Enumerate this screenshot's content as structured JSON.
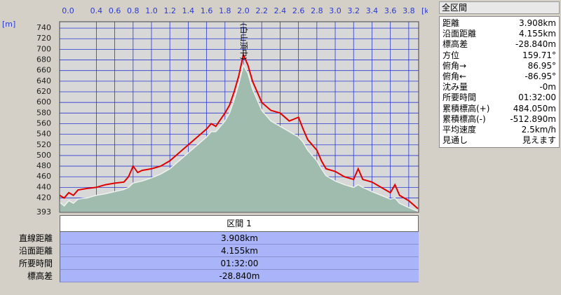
{
  "chart_data": {
    "type": "line",
    "y_unit": "[m]",
    "x_unit": "[km]",
    "xlim": [
      0,
      3.908
    ],
    "ylim": [
      393,
      752
    ],
    "xticks": [
      {
        "value": 0,
        "label": "0.0"
      },
      0.4,
      0.6,
      0.8,
      {
        "value": 1,
        "label": "1.0"
      },
      1.2,
      1.4,
      1.6,
      1.8,
      {
        "value": 2,
        "label": "2.0"
      },
      2.2,
      2.4,
      2.6,
      2.8,
      {
        "value": 3,
        "label": "3.0"
      },
      3.2,
      3.4,
      3.6,
      3.8
    ],
    "yticks": [
      393,
      420,
      440,
      460,
      480,
      500,
      520,
      540,
      560,
      580,
      600,
      620,
      640,
      660,
      680,
      700,
      720,
      740
    ],
    "grid": true,
    "x": [
      0,
      0.05,
      0.1,
      0.15,
      0.2,
      0.3,
      0.4,
      0.5,
      0.6,
      0.7,
      0.75,
      0.8,
      0.85,
      0.9,
      1.0,
      1.1,
      1.2,
      1.3,
      1.4,
      1.5,
      1.6,
      1.65,
      1.7,
      1.8,
      1.85,
      1.9,
      1.95,
      2.0,
      2.05,
      2.1,
      2.15,
      2.2,
      2.3,
      2.4,
      2.5,
      2.6,
      2.65,
      2.7,
      2.8,
      2.85,
      2.9,
      3.0,
      3.1,
      3.2,
      3.25,
      3.3,
      3.4,
      3.5,
      3.6,
      3.65,
      3.7,
      3.8,
      3.9
    ],
    "series": [
      {
        "type": "area",
        "color": "#9fbcaf",
        "values": [
          412,
          405,
          415,
          410,
          418,
          420,
          425,
          428,
          432,
          436,
          440,
          448,
          450,
          452,
          458,
          465,
          475,
          490,
          505,
          520,
          535,
          545,
          545,
          565,
          580,
          605,
          635,
          670,
          655,
          625,
          605,
          585,
          565,
          555,
          545,
          535,
          525,
          510,
          490,
          475,
          462,
          452,
          445,
          440,
          445,
          440,
          432,
          425,
          418,
          420,
          410,
          402,
          395
        ]
      },
      {
        "type": "line",
        "color": "#e00000",
        "values": [
          425,
          420,
          430,
          425,
          435,
          438,
          440,
          445,
          448,
          450,
          460,
          480,
          468,
          472,
          475,
          480,
          490,
          505,
          520,
          535,
          550,
          560,
          555,
          580,
          595,
          620,
          650,
          690,
          670,
          640,
          620,
          600,
          585,
          580,
          565,
          572,
          550,
          530,
          510,
          490,
          475,
          470,
          460,
          455,
          475,
          455,
          450,
          440,
          430,
          445,
          425,
          415,
          400
        ]
      }
    ],
    "annotations": [
      {
        "text": "(白山頂中)",
        "x": 2.0
      }
    ]
  },
  "section_table": {
    "header": "区間 1",
    "rows": [
      [
        "直線距離",
        "3.908km"
      ],
      [
        "沿面距離",
        "4.155km"
      ],
      [
        "所要時間",
        "01:32:00"
      ],
      [
        "標高差",
        "-28.840m"
      ]
    ]
  },
  "summary_panel": {
    "title": "全区間",
    "rows": [
      [
        "距離",
        "3.908km"
      ],
      [
        "沿面距離",
        "4.155km"
      ],
      [
        "標高差",
        "-28.840m"
      ],
      [
        "方位",
        "159.71°"
      ],
      [
        "俯角→",
        "86.95°"
      ],
      [
        "俯角←",
        "-86.95°"
      ],
      [
        "沈み量",
        "-0m"
      ],
      [
        "所要時間",
        "01:32:00"
      ],
      [
        "累積標高(+)",
        "484.050m"
      ],
      [
        "累積標高(-)",
        "-512.890m"
      ],
      [
        "平均速度",
        "2.5km/h"
      ],
      [
        "見通し",
        "見えます"
      ]
    ]
  }
}
